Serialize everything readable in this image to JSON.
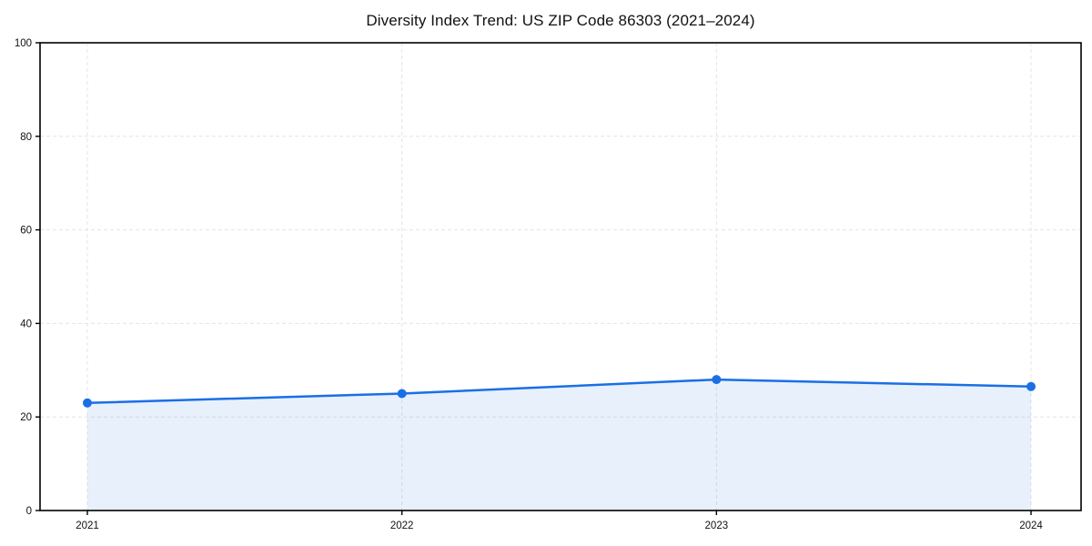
{
  "page": {
    "background": "#ffffff"
  },
  "chart_data": {
    "type": "area",
    "title": "Diversity Index Trend: US ZIP Code 86303 (2021–2024)",
    "categories": [
      "2021",
      "2022",
      "2023",
      "2024"
    ],
    "series": [
      {
        "name": "Diversity Index",
        "values": [
          23,
          25,
          28,
          26.5
        ]
      }
    ],
    "xlabel": "",
    "ylabel": "",
    "ylim": [
      0,
      100
    ],
    "yticks": [
      0,
      20,
      40,
      60,
      80,
      100
    ],
    "grid": true,
    "grid_style": "dashed",
    "legend_position": "none",
    "line_color": "#1a6fe5",
    "marker_color": "#1a6fe5",
    "fill_color": "rgba(26, 111, 229, 0.10)",
    "frame_color": "#000000"
  }
}
